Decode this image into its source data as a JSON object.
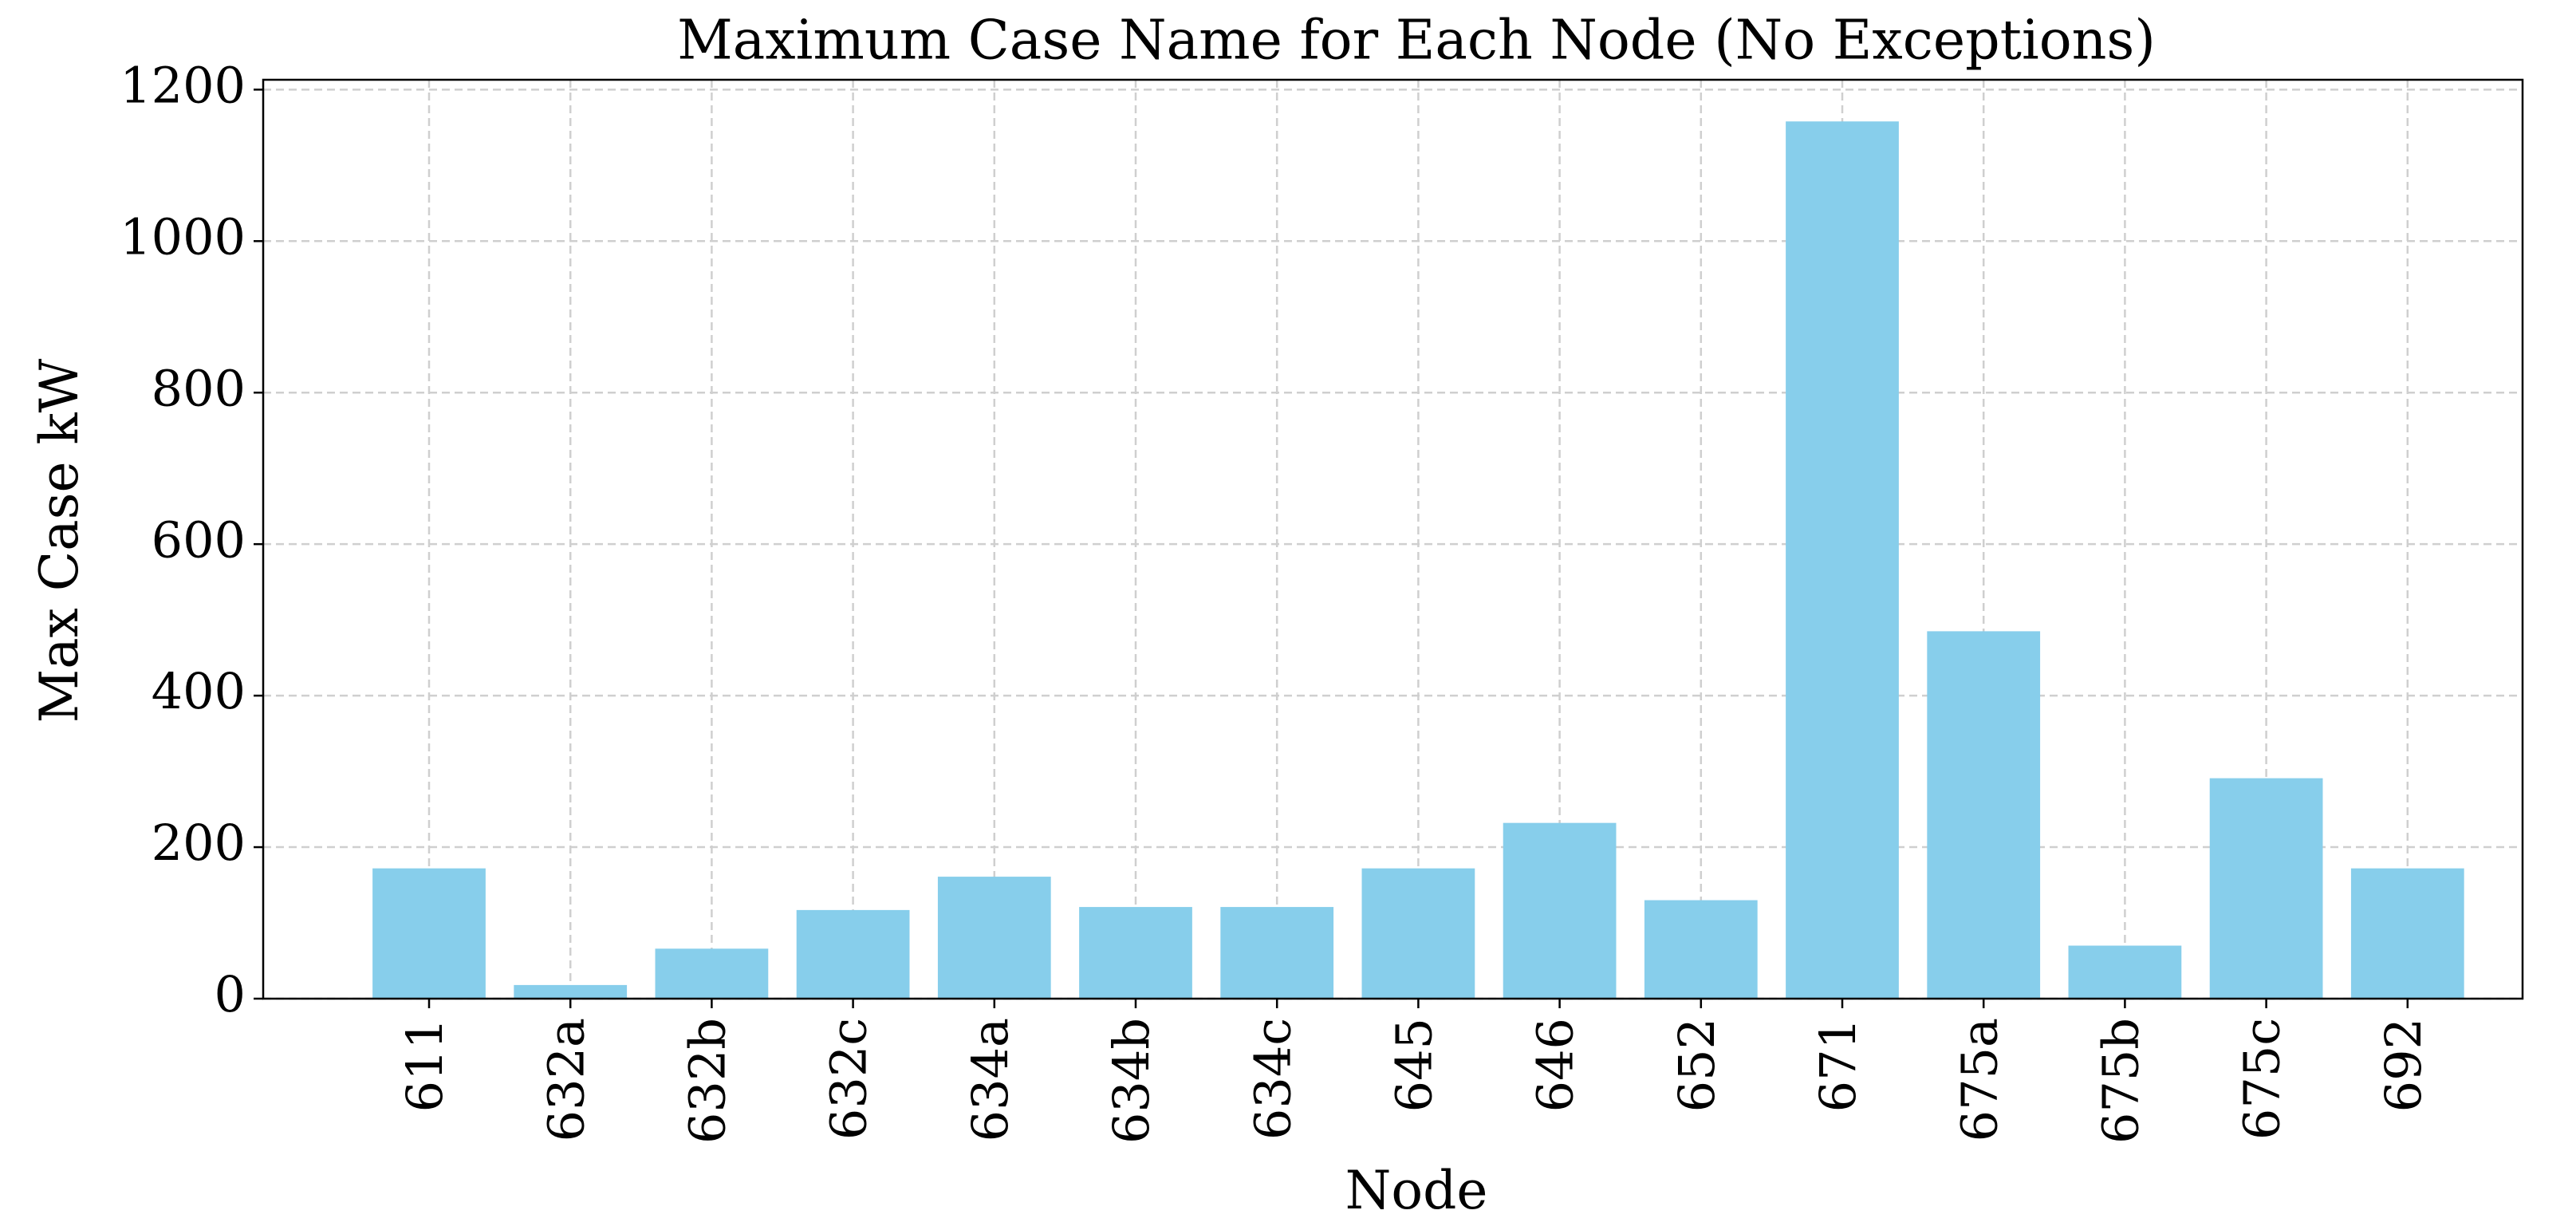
{
  "chart_data": {
    "type": "bar",
    "title": "Maximum Case Name for Each Node (No Exceptions)",
    "x_label": "Node",
    "y_label": "Max Case kW",
    "categories": [
      "611",
      "632a",
      "632b",
      "632c",
      "634a",
      "634b",
      "634c",
      "645",
      "646",
      "652",
      "671",
      "675a",
      "675b",
      "675c",
      "692"
    ],
    "values": [
      172,
      18,
      66,
      117,
      161,
      121,
      121,
      172,
      232,
      130,
      1158,
      485,
      70,
      291,
      172
    ],
    "color": "#87ceeb",
    "ylim": [
      0,
      1213
    ],
    "yticks": [
      0,
      200,
      400,
      600,
      800,
      1000,
      1200
    ],
    "grid": true
  }
}
